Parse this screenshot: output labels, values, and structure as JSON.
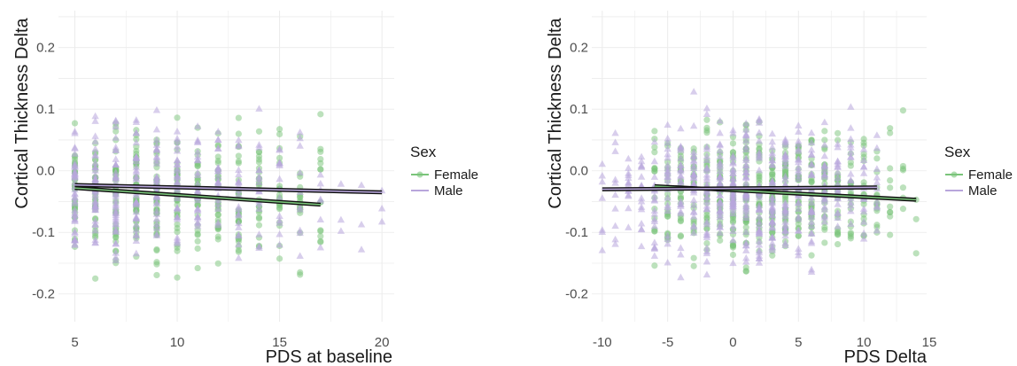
{
  "chart_data": [
    {
      "type": "scatter",
      "xlabel": "PDS at baseline",
      "ylabel": "Cortical Thickness Delta",
      "xlim": [
        4.2,
        20.6
      ],
      "ylim": [
        -0.245,
        0.26
      ],
      "xticks": [
        "5",
        "10",
        "15",
        "20"
      ],
      "xtick_values": [
        5,
        10,
        15,
        20
      ],
      "yticks": [
        "-0.2",
        "-0.1",
        "0.0",
        "0.1",
        "0.2"
      ],
      "ytick_values": [
        -0.2,
        -0.1,
        0.0,
        0.1,
        0.2
      ],
      "grid": true,
      "legend": {
        "title": "Sex",
        "position": "right"
      },
      "series": [
        {
          "name": "Female",
          "color": "#7ac47a",
          "marker": "circle",
          "x_min": 5,
          "x_max": 17,
          "y_center": -0.04,
          "y_spread": 0.085,
          "fit": {
            "x": [
              5,
              17
            ],
            "y": [
              -0.028,
              -0.055
            ]
          }
        },
        {
          "name": "Male",
          "color": "#b8a6dc",
          "marker": "triangle",
          "x_min": 5,
          "x_max": 20,
          "y_center": -0.035,
          "y_spread": 0.09,
          "fit": {
            "x": [
              5,
              20
            ],
            "y": [
              -0.023,
              -0.035
            ]
          }
        }
      ]
    },
    {
      "type": "scatter",
      "xlabel": "PDS Delta",
      "ylabel": "Cortical Thickness Delta",
      "xlim": [
        -10.8,
        14.8
      ],
      "ylim": [
        -0.245,
        0.26
      ],
      "xticks": [
        "-10",
        "-5",
        "0",
        "5",
        "10",
        "15"
      ],
      "xtick_values": [
        -10,
        -5,
        0,
        5,
        10,
        15
      ],
      "yticks": [
        "-0.2",
        "-0.1",
        "0.0",
        "0.1",
        "0.2"
      ],
      "ytick_values": [
        -0.2,
        -0.1,
        0.0,
        0.1,
        0.2
      ],
      "grid": true,
      "legend": {
        "title": "Sex",
        "position": "right"
      },
      "series": [
        {
          "name": "Female",
          "color": "#7ac47a",
          "marker": "circle",
          "x_min": -6,
          "x_max": 14,
          "y_center": -0.035,
          "y_spread": 0.085,
          "fit": {
            "x": [
              -6,
              14
            ],
            "y": [
              -0.025,
              -0.047
            ]
          }
        },
        {
          "name": "Male",
          "color": "#b8a6dc",
          "marker": "triangle",
          "x_min": -10,
          "x_max": 11,
          "y_center": -0.03,
          "y_spread": 0.09,
          "fit": {
            "x": [
              -10,
              11
            ],
            "y": [
              -0.03,
              -0.027
            ]
          }
        }
      ]
    }
  ]
}
